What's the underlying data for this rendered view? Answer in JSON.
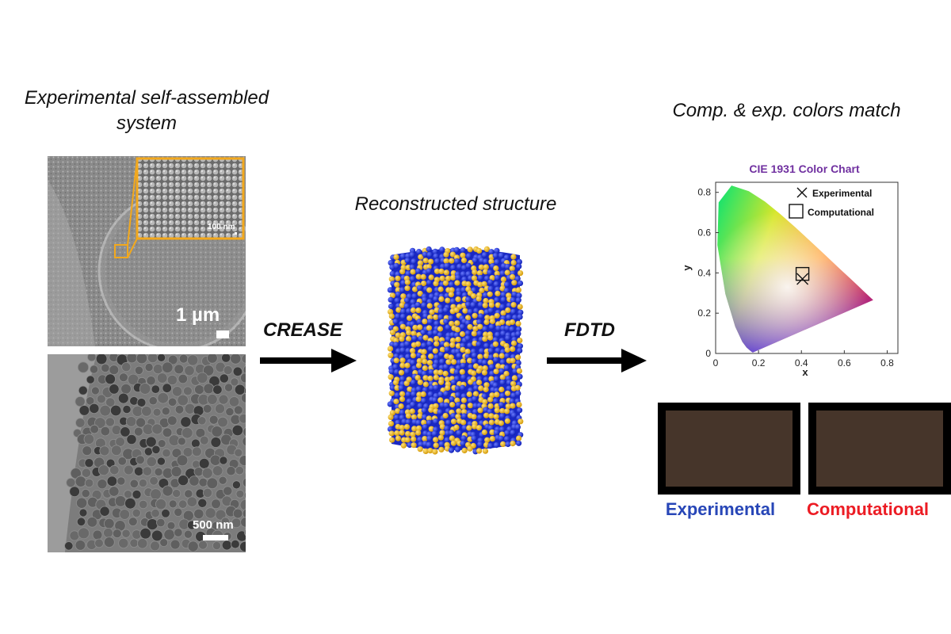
{
  "titles": {
    "experimental": "Experimental self-assembled system",
    "reconstructed": "Reconstructed structure",
    "comparison": "Comp. & exp. colors match"
  },
  "steps": {
    "crease": "CREASE",
    "fdtd": "FDTD"
  },
  "sem": {
    "scale_main": "1 µm",
    "scale_inset": "100 nm"
  },
  "tem": {
    "scale": "500 nm"
  },
  "cie_chart": {
    "title": "CIE 1931 Color Chart",
    "xlabel": "x",
    "ylabel": "y",
    "xticks": [
      "0",
      "0.2",
      "0.4",
      "0.6",
      "0.8"
    ],
    "yticks": [
      "0",
      "0.2",
      "0.4",
      "0.6",
      "0.8"
    ],
    "legend": {
      "experimental": "Experimental",
      "computational": "Computational"
    },
    "title_color": "#7030a0"
  },
  "chart_data": {
    "type": "scatter",
    "title": "CIE 1931 Color Chart",
    "xlabel": "x",
    "ylabel": "y",
    "xlim": [
      0,
      0.85
    ],
    "ylim": [
      0,
      0.85
    ],
    "series": [
      {
        "name": "Experimental",
        "marker": "x",
        "points": [
          [
            0.405,
            0.37
          ]
        ]
      },
      {
        "name": "Computational",
        "marker": "square",
        "points": [
          [
            0.405,
            0.395
          ]
        ]
      }
    ]
  },
  "swatches": {
    "experimental": {
      "label": "Experimental",
      "color": "#46352a",
      "label_color": "#2746b7"
    },
    "computational": {
      "label": "Computational",
      "color": "#46352a",
      "label_color": "#ec1c24"
    }
  }
}
